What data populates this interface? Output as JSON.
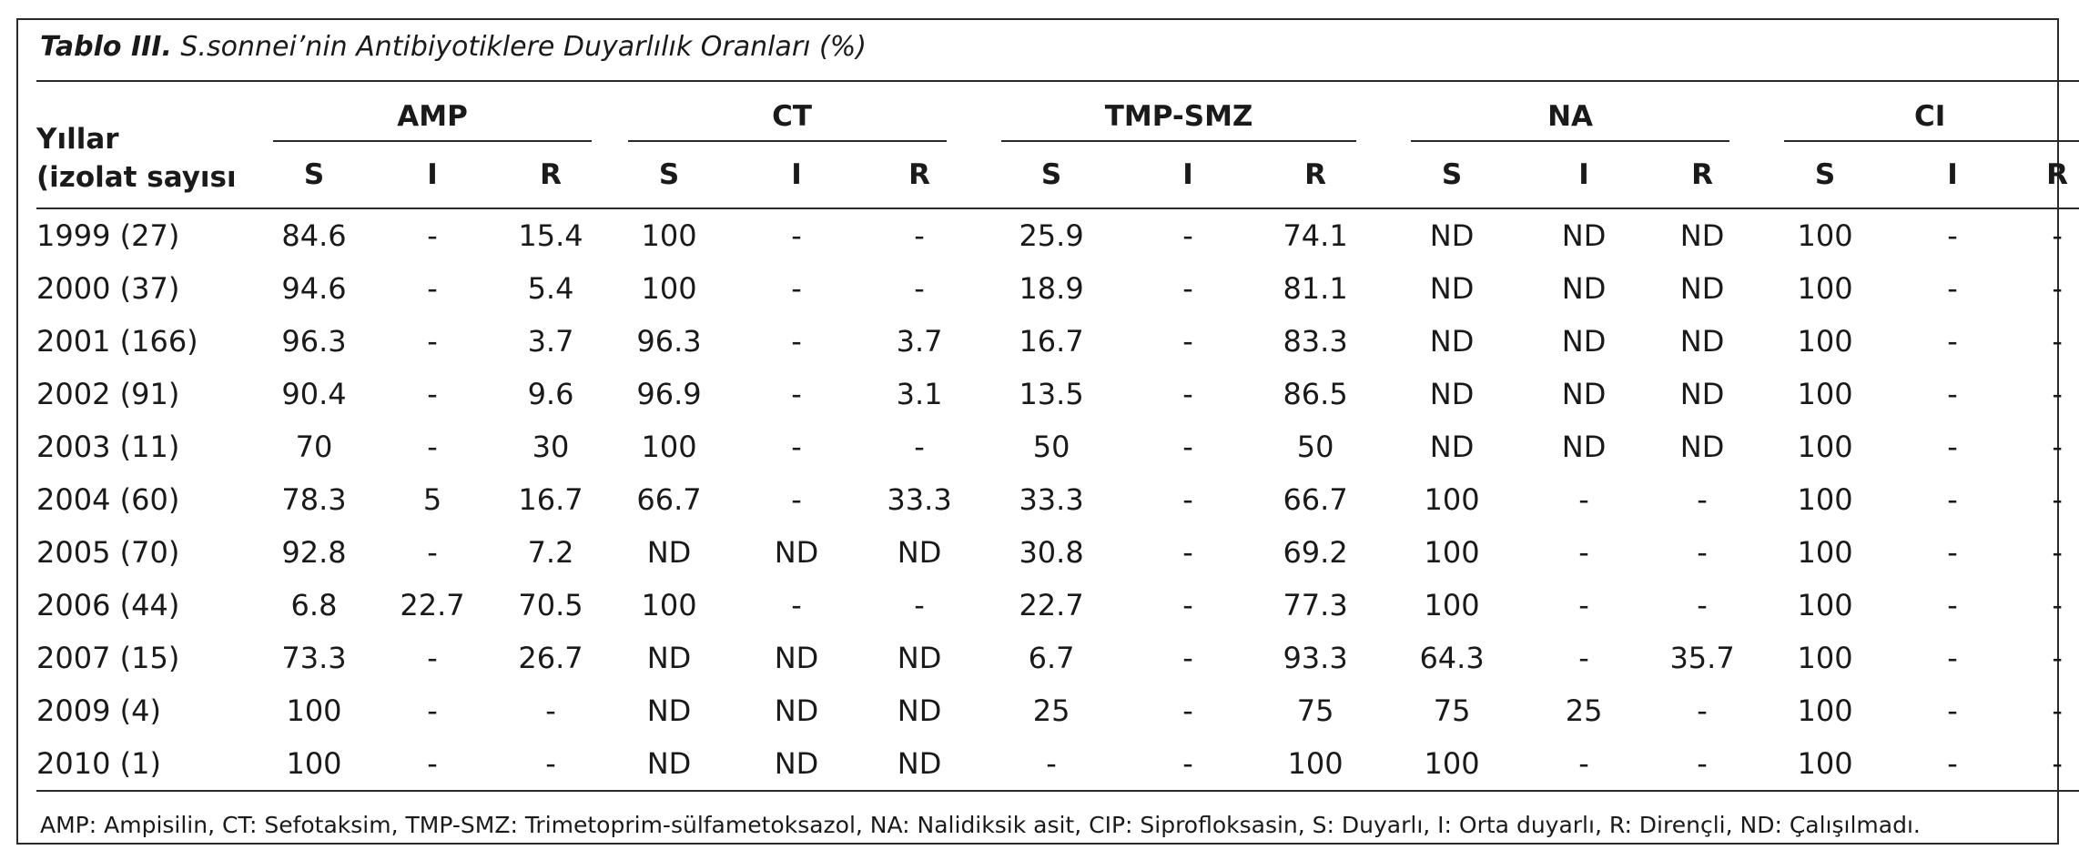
{
  "caption": {
    "label": "Tablo III.",
    "text": "S.sonnei’nin Antibiyotiklere Duyarlılık Oranları (%)"
  },
  "header": {
    "year_line1": "Yıllar",
    "year_line2": "(izolat sayısı",
    "groups": [
      "AMP",
      "CT",
      "TMP-SMZ",
      "NA",
      "CI"
    ],
    "sub": [
      "S",
      "I",
      "R"
    ]
  },
  "rows": [
    {
      "year": "1999 (27)",
      "cells": [
        "84.6",
        "-",
        "15.4",
        "100",
        "-",
        "-",
        "25.9",
        "-",
        "74.1",
        "ND",
        "ND",
        "ND",
        "100",
        "-",
        "-"
      ]
    },
    {
      "year": "2000 (37)",
      "cells": [
        "94.6",
        "-",
        "5.4",
        "100",
        "-",
        "-",
        "18.9",
        "-",
        "81.1",
        "ND",
        "ND",
        "ND",
        "100",
        "-",
        "-"
      ]
    },
    {
      "year": "2001 (166)",
      "cells": [
        "96.3",
        "-",
        "3.7",
        "96.3",
        "-",
        "3.7",
        "16.7",
        "-",
        "83.3",
        "ND",
        "ND",
        "ND",
        "100",
        "-",
        "-"
      ]
    },
    {
      "year": "2002 (91)",
      "cells": [
        "90.4",
        "-",
        "9.6",
        "96.9",
        "-",
        "3.1",
        "13.5",
        "-",
        "86.5",
        "ND",
        "ND",
        "ND",
        "100",
        "-",
        "-"
      ]
    },
    {
      "year": "2003 (11)",
      "cells": [
        "70",
        "-",
        "30",
        "100",
        "-",
        "-",
        "50",
        "-",
        "50",
        "ND",
        "ND",
        "ND",
        "100",
        "-",
        "-"
      ]
    },
    {
      "year": "2004 (60)",
      "cells": [
        "78.3",
        "5",
        "16.7",
        "66.7",
        "-",
        "33.3",
        "33.3",
        "-",
        "66.7",
        "100",
        "-",
        "-",
        "100",
        "-",
        "-"
      ]
    },
    {
      "year": "2005 (70)",
      "cells": [
        "92.8",
        "-",
        "7.2",
        "ND",
        "ND",
        "ND",
        "30.8",
        "-",
        "69.2",
        "100",
        "-",
        "-",
        "100",
        "-",
        "-"
      ]
    },
    {
      "year": "2006 (44)",
      "cells": [
        "6.8",
        "22.7",
        "70.5",
        "100",
        "-",
        "-",
        "22.7",
        "-",
        "77.3",
        "100",
        "-",
        "-",
        "100",
        "-",
        "-"
      ]
    },
    {
      "year": "2007 (15)",
      "cells": [
        "73.3",
        "-",
        "26.7",
        "ND",
        "ND",
        "ND",
        "6.7",
        "-",
        "93.3",
        "64.3",
        "-",
        "35.7",
        "100",
        "-",
        "-"
      ]
    },
    {
      "year": "2009 (4)",
      "cells": [
        "100",
        "-",
        "-",
        "ND",
        "ND",
        "ND",
        "25",
        "-",
        "75",
        "75",
        "25",
        "-",
        "100",
        "-",
        "-"
      ]
    },
    {
      "year": "2010 (1)",
      "cells": [
        "100",
        "-",
        "-",
        "ND",
        "ND",
        "ND",
        "-",
        "-",
        "100",
        "100",
        "-",
        "-",
        "100",
        "-",
        "-"
      ]
    }
  ],
  "footnote": "AMP: Ampisilin, CT: Sefotaksim, TMP-SMZ: Trimetoprim-sülfametoksazol, NA: Nalidiksik asit, CIP: Siprofloksasin, S: Duyarlı, I: Orta duyarlı, R: Dirençli, ND: Çalışılmadı."
}
